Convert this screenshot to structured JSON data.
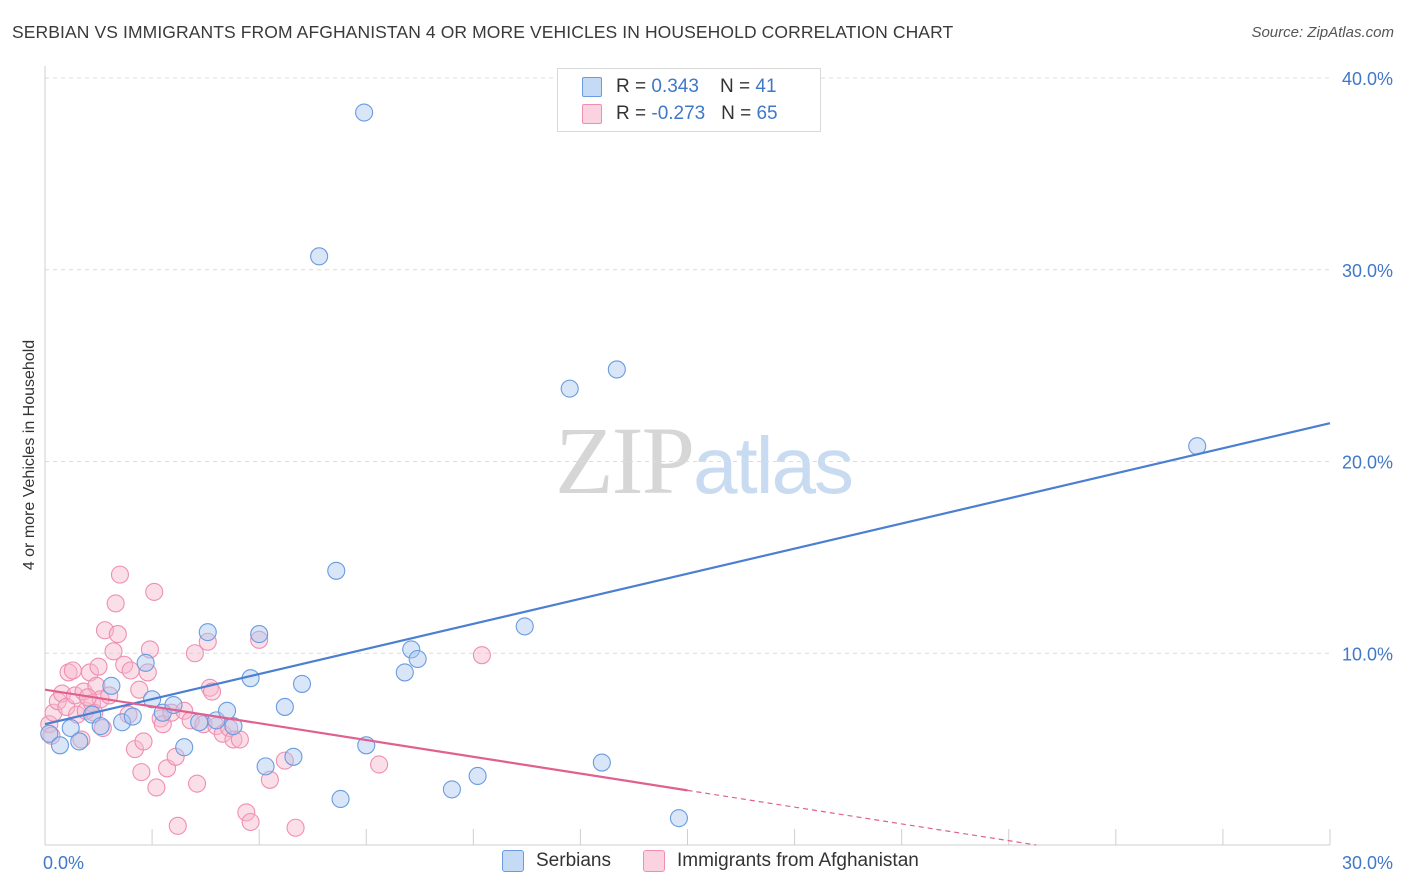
{
  "title": "SERBIAN VS IMMIGRANTS FROM AFGHANISTAN 4 OR MORE VEHICLES IN HOUSEHOLD CORRELATION CHART",
  "source": "Source: ZipAtlas.com",
  "watermark": {
    "zip": "ZIP",
    "atlas": "atlas"
  },
  "legend_top": [
    {
      "name": "Serbians",
      "r_label": "R = ",
      "r_value": "0.343",
      "n_label": "N = ",
      "n_value": "41",
      "color": "#a9c8ef"
    },
    {
      "name": "Immigrants from Afghanistan",
      "r_label": "R = ",
      "r_value": "-0.273",
      "n_label": "N = ",
      "n_value": "65",
      "color": "#f6b9cd"
    }
  ],
  "legend_bottom": [
    "Serbians",
    "Immigrants from Afghanistan"
  ],
  "chart_data": {
    "type": "scatter",
    "title": "SERBIAN VS IMMIGRANTS FROM AFGHANISTAN 4 OR MORE VEHICLES IN HOUSEHOLD CORRELATION CHART",
    "xlabel": "",
    "ylabel": "4 or more Vehicles in Household",
    "xlim": [
      0,
      30
    ],
    "ylim": [
      0,
      40
    ],
    "x_tick_labels": [
      "0.0%",
      "30.0%"
    ],
    "y_ticks": [
      10,
      20,
      30,
      40
    ],
    "y_tick_labels": [
      "10.0%",
      "20.0%",
      "30.0%",
      "40.0%"
    ],
    "grid": true,
    "series": [
      {
        "name": "Serbians",
        "color": "#4a7fd1",
        "fill": "#a9c8ef",
        "r": 0.343,
        "n": 41,
        "trend": {
          "x": [
            0,
            30
          ],
          "y": [
            6.3,
            22.0
          ],
          "dashed_from": null
        },
        "points": [
          [
            0.1,
            5.8
          ],
          [
            0.35,
            5.2
          ],
          [
            0.6,
            6.1
          ],
          [
            0.8,
            5.4
          ],
          [
            1.1,
            6.8
          ],
          [
            1.3,
            6.2
          ],
          [
            1.55,
            8.3
          ],
          [
            1.8,
            6.4
          ],
          [
            2.05,
            6.7
          ],
          [
            2.35,
            9.5
          ],
          [
            2.5,
            7.6
          ],
          [
            2.75,
            6.9
          ],
          [
            3.0,
            7.3
          ],
          [
            3.25,
            5.1
          ],
          [
            3.6,
            6.4
          ],
          [
            3.8,
            11.1
          ],
          [
            4.0,
            6.5
          ],
          [
            4.25,
            7.0
          ],
          [
            4.4,
            6.2
          ],
          [
            4.8,
            8.7
          ],
          [
            5.0,
            11.0
          ],
          [
            5.15,
            4.1
          ],
          [
            5.6,
            7.2
          ],
          [
            5.8,
            4.6
          ],
          [
            6.0,
            8.4
          ],
          [
            6.4,
            30.7
          ],
          [
            6.9,
            2.4
          ],
          [
            6.8,
            14.3
          ],
          [
            7.45,
            38.2
          ],
          [
            7.5,
            5.2
          ],
          [
            8.4,
            9.0
          ],
          [
            8.55,
            10.2
          ],
          [
            8.7,
            9.7
          ],
          [
            9.5,
            2.9
          ],
          [
            10.1,
            3.6
          ],
          [
            11.2,
            11.4
          ],
          [
            12.25,
            23.8
          ],
          [
            13.0,
            4.3
          ],
          [
            13.35,
            24.8
          ],
          [
            14.8,
            1.4
          ],
          [
            26.9,
            20.8
          ]
        ]
      },
      {
        "name": "Immigrants from Afghanistan",
        "color": "#e0608f",
        "fill": "#f6b9cd",
        "r": -0.273,
        "n": 65,
        "trend": {
          "x": [
            0,
            30
          ],
          "y": [
            8.1,
            -2.4
          ],
          "dashed_from": 15.0
        },
        "points": [
          [
            0.1,
            6.3
          ],
          [
            0.2,
            6.9
          ],
          [
            0.3,
            7.5
          ],
          [
            0.4,
            7.9
          ],
          [
            0.5,
            7.2
          ],
          [
            0.55,
            9.0
          ],
          [
            0.65,
            9.1
          ],
          [
            0.7,
            7.8
          ],
          [
            0.75,
            6.8
          ],
          [
            0.85,
            5.5
          ],
          [
            0.9,
            8.0
          ],
          [
            0.95,
            7.0
          ],
          [
            1.05,
            9.0
          ],
          [
            1.1,
            7.4
          ],
          [
            1.15,
            6.9
          ],
          [
            1.2,
            8.3
          ],
          [
            1.25,
            9.3
          ],
          [
            1.3,
            7.6
          ],
          [
            1.35,
            6.1
          ],
          [
            1.4,
            11.2
          ],
          [
            1.5,
            7.8
          ],
          [
            1.6,
            10.1
          ],
          [
            1.65,
            12.6
          ],
          [
            1.7,
            11.0
          ],
          [
            1.75,
            14.1
          ],
          [
            1.85,
            9.4
          ],
          [
            1.95,
            6.8
          ],
          [
            2.0,
            9.1
          ],
          [
            2.1,
            5.0
          ],
          [
            2.2,
            8.1
          ],
          [
            2.3,
            5.4
          ],
          [
            2.4,
            9.0
          ],
          [
            2.45,
            10.2
          ],
          [
            2.55,
            13.2
          ],
          [
            2.6,
            3.0
          ],
          [
            2.7,
            6.6
          ],
          [
            2.75,
            6.3
          ],
          [
            2.85,
            4.0
          ],
          [
            2.95,
            6.9
          ],
          [
            3.05,
            4.6
          ],
          [
            3.1,
            1.0
          ],
          [
            3.25,
            7.0
          ],
          [
            3.4,
            6.5
          ],
          [
            3.5,
            10.0
          ],
          [
            3.55,
            3.2
          ],
          [
            3.7,
            6.3
          ],
          [
            3.8,
            10.6
          ],
          [
            3.85,
            8.2
          ],
          [
            3.9,
            8.0
          ],
          [
            4.0,
            6.2
          ],
          [
            4.15,
            5.8
          ],
          [
            4.3,
            6.1
          ],
          [
            4.4,
            5.5
          ],
          [
            4.55,
            5.5
          ],
          [
            4.7,
            1.7
          ],
          [
            4.8,
            1.2
          ],
          [
            5.0,
            10.7
          ],
          [
            5.25,
            3.4
          ],
          [
            5.6,
            4.4
          ],
          [
            5.85,
            0.9
          ],
          [
            7.8,
            4.2
          ],
          [
            10.2,
            9.9
          ],
          [
            0.15,
            5.7
          ],
          [
            1.0,
            7.7
          ],
          [
            2.25,
            3.8
          ]
        ]
      }
    ]
  }
}
